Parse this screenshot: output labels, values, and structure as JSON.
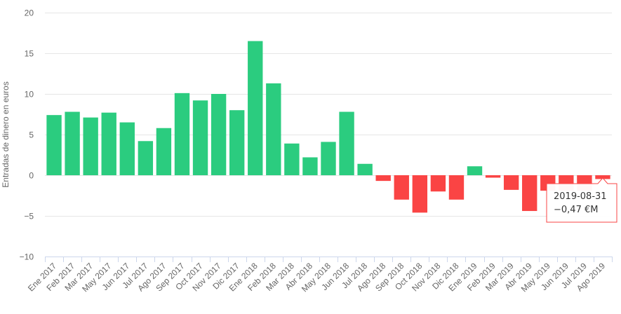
{
  "chart_data": {
    "type": "bar",
    "title": "",
    "xlabel": "",
    "ylabel": "Entradas de dinero en euros",
    "ylim": [
      -10,
      20
    ],
    "yticks": [
      20,
      15,
      10,
      5,
      0,
      -5,
      -10
    ],
    "yticks_labels": [
      "20",
      "15",
      "10",
      "5",
      "0",
      "−5",
      "−10"
    ],
    "grid": true,
    "legend": "none",
    "colors": {
      "positive": "#2bcc7f",
      "negative": "#fa4444",
      "grid": "#e6e6e6",
      "baseline": "#ccd6eb"
    },
    "categories": [
      "Ene 2017",
      "Feb 2017",
      "Mar 2017",
      "May 2017",
      "Jun 2017",
      "Jul 2017",
      "Ago 2017",
      "Sep 2017",
      "Oct 2017",
      "Nov 2017",
      "Dic 2017",
      "Ene 2018",
      "Feb 2018",
      "Mar 2018",
      "Abr 2018",
      "May 2018",
      "Jun 2018",
      "Jul 2018",
      "Ago 2018",
      "Sep 2018",
      "Oct 2018",
      "Nov 2018",
      "Dic 2018",
      "Ene 2019",
      "Feb 2019",
      "Mar 2019",
      "Abr 2019",
      "May 2019",
      "Jun 2019",
      "Jul 2019",
      "Ago 2019"
    ],
    "values": [
      7.4,
      7.8,
      7.1,
      7.7,
      6.5,
      4.2,
      5.8,
      10.1,
      9.2,
      10.0,
      8.0,
      16.5,
      11.3,
      3.9,
      2.2,
      4.1,
      7.8,
      1.4,
      -0.7,
      -3.0,
      -4.6,
      -2.0,
      -3.0,
      1.1,
      -0.3,
      -1.8,
      -4.4,
      -1.9,
      -1.9,
      -1.9,
      -0.47
    ],
    "tooltip": {
      "category": "Ago 2019",
      "date": "2019-08-31",
      "value": "−0,47 €M"
    }
  }
}
